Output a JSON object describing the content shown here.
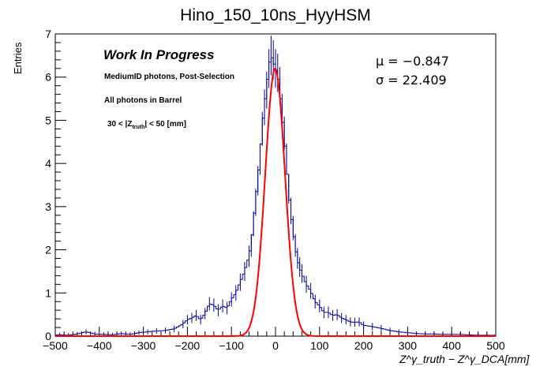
{
  "chart_data": {
    "type": "line",
    "title": "Hino_150_10ns_HyyHSM",
    "ylabel": "Entries",
    "xlabel": "Z^γ_truth − Z^γ_DCA[mm]",
    "xlim": [
      -500,
      500
    ],
    "ylim": [
      0,
      7
    ],
    "x_ticks": [
      -500,
      -400,
      -300,
      -200,
      -100,
      0,
      100,
      200,
      300,
      400,
      500
    ],
    "x_tick_labels": [
      "−500",
      "−400",
      "−300",
      "−200",
      "−100",
      "0",
      "100",
      "200",
      "300",
      "400",
      "500"
    ],
    "y_ticks": [
      0,
      1,
      2,
      3,
      4,
      5,
      6,
      7
    ],
    "y_tick_labels": [
      "0",
      "1",
      "2",
      "3",
      "4",
      "5",
      "6",
      "7"
    ],
    "annotations": {
      "wip": "Work In Progress",
      "line1": "MediumID photons, Post-Selection",
      "line2": "All photons in Barrel",
      "line3_pre": "30 < |Z",
      "line3_sub": "truth",
      "line3_post": "| < 50 [mm]"
    },
    "stats": {
      "mu_label": "μ = −0.847",
      "sigma_label": "σ = 22.409"
    },
    "fit": {
      "name": "Gaussian fit",
      "color": "#ff0000",
      "mean": -0.847,
      "sigma": 22.409,
      "amplitude": 6.2
    },
    "series": [
      {
        "name": "Hino_150_10ns_HyyHSM",
        "color": "#000099",
        "x": [
          -490,
          -470,
          -450,
          -430,
          -410,
          -390,
          -370,
          -350,
          -330,
          -310,
          -290,
          -270,
          -250,
          -230,
          -210,
          -200,
          -190,
          -180,
          -170,
          -160,
          -150,
          -140,
          -130,
          -120,
          -110,
          -100,
          -90,
          -80,
          -70,
          -60,
          -55,
          -50,
          -45,
          -40,
          -35,
          -30,
          -25,
          -20,
          -15,
          -10,
          -5,
          0,
          5,
          10,
          15,
          20,
          25,
          30,
          35,
          40,
          45,
          50,
          55,
          60,
          70,
          80,
          90,
          100,
          110,
          120,
          130,
          140,
          150,
          160,
          170,
          180,
          190,
          200,
          220,
          240,
          260,
          280,
          300,
          320,
          340,
          360,
          380,
          400,
          420,
          440,
          460,
          480
        ],
        "y": [
          0.03,
          0.02,
          0.05,
          0.1,
          0.05,
          0.04,
          0.03,
          0.06,
          0.04,
          0.08,
          0.1,
          0.12,
          0.13,
          0.17,
          0.28,
          0.38,
          0.42,
          0.48,
          0.38,
          0.52,
          0.75,
          0.72,
          0.6,
          0.7,
          0.65,
          0.85,
          1.0,
          1.25,
          1.5,
          1.85,
          2.1,
          2.6,
          3.1,
          3.6,
          4.1,
          4.8,
          5.3,
          5.7,
          6.2,
          6.5,
          6.4,
          6.2,
          6.1,
          5.8,
          5.2,
          4.7,
          4.1,
          3.4,
          2.9,
          2.5,
          2.1,
          1.8,
          1.6,
          1.45,
          1.2,
          1.05,
          0.8,
          0.7,
          0.55,
          0.55,
          0.48,
          0.5,
          0.42,
          0.38,
          0.33,
          0.32,
          0.33,
          0.25,
          0.22,
          0.18,
          0.13,
          0.1,
          0.08,
          0.06,
          0.05,
          0.05,
          0.04,
          0.04,
          0.04,
          0.03,
          0.02,
          0.02
        ]
      }
    ]
  }
}
